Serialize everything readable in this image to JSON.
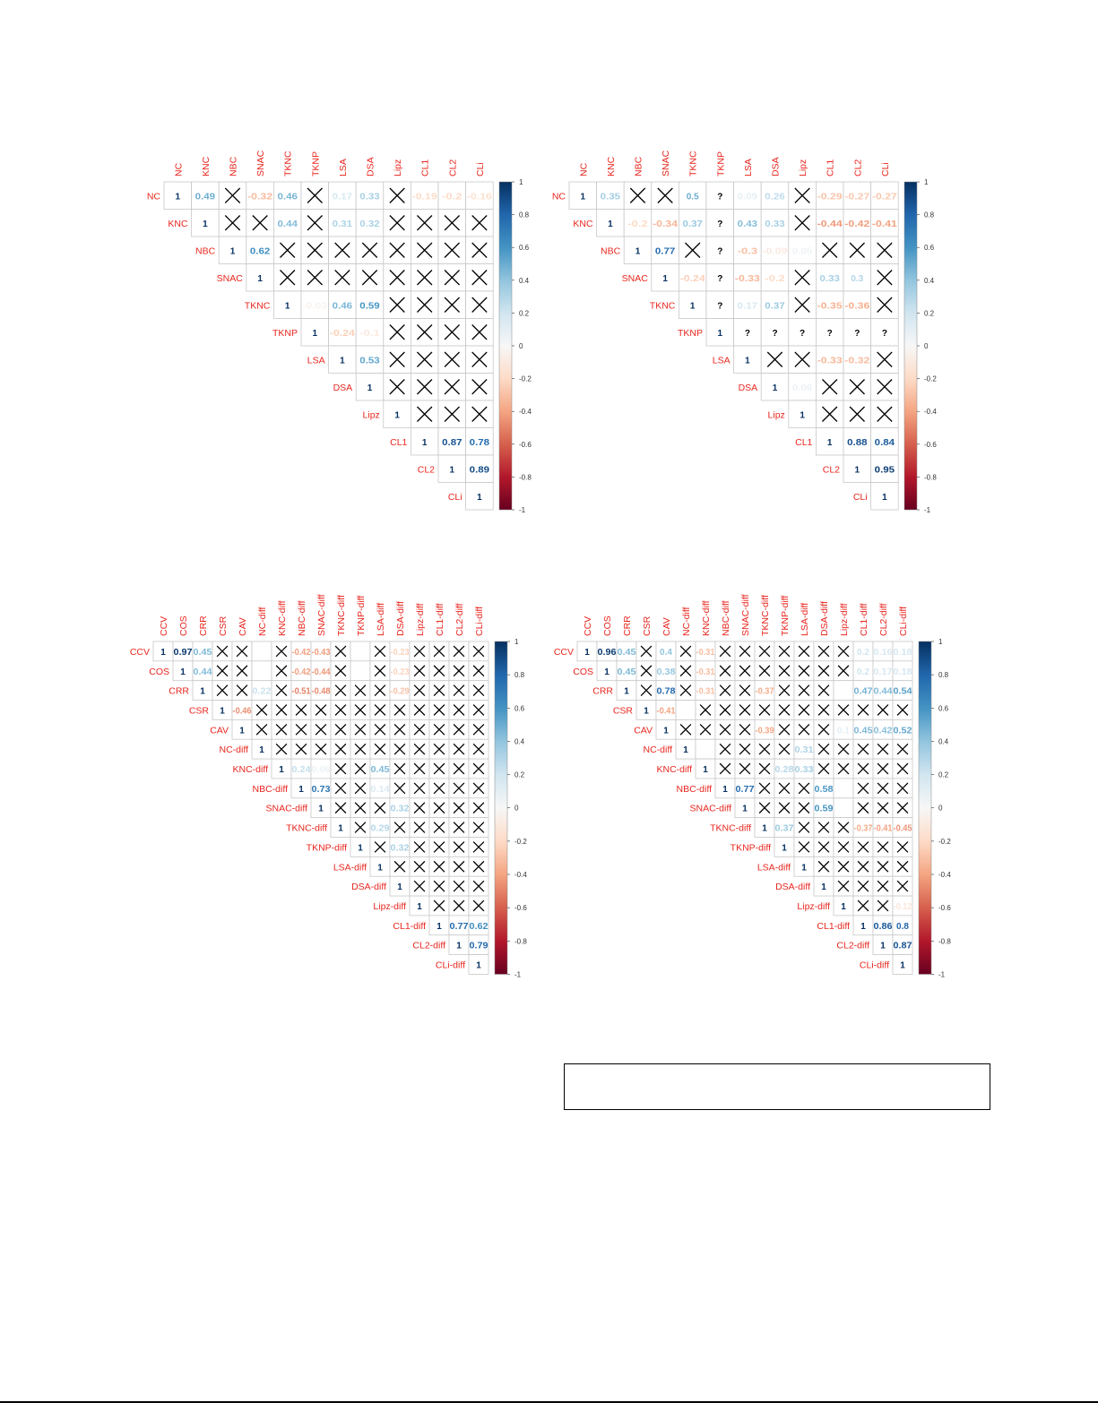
{
  "colors": {
    "label": "#E8261E",
    "grid": "#C8C8C8",
    "cross": "#000000",
    "colormap": [
      "#67001F",
      "#B2182B",
      "#D6604D",
      "#F4A582",
      "#FDDBC7",
      "#F7F7F7",
      "#D1E5F0",
      "#92C5DE",
      "#4393C3",
      "#2166AC",
      "#053061"
    ]
  },
  "chart_data": [
    {
      "type": "heatmap",
      "subtype": "upper-triangle correlation matrix",
      "colorbar_ticks": [
        "1",
        "0.8",
        "0.6",
        "0.4",
        "0.2",
        "0",
        "-0.2",
        "-0.4",
        "-0.6",
        "-0.8",
        "-1"
      ],
      "range": [
        -1,
        1
      ],
      "variables": [
        "NC",
        "KNC",
        "NBC",
        "SNAC",
        "TKNC",
        "TKNP",
        "LSA",
        "DSA",
        "Lipz",
        "CL1",
        "CL2",
        "CLi"
      ],
      "rows": [
        [
          "1",
          "0.49",
          "X",
          "-0.32",
          "0.46",
          "X",
          "0.17",
          "0.33",
          "X",
          "-0.19",
          "-0.2",
          "-0.16"
        ],
        [
          "1",
          "X",
          "X",
          "0.44",
          "X",
          "0.31",
          "0.32",
          "X",
          "X",
          "X",
          "X"
        ],
        [
          "1",
          "0.62",
          "X",
          "X",
          "X",
          "X",
          "X",
          "X",
          "X",
          "X"
        ],
        [
          "1",
          "X",
          "X",
          "X",
          "X",
          "X",
          "X",
          "X",
          "X"
        ],
        [
          "1",
          "-0.03",
          "0.46",
          "0.59",
          "X",
          "X",
          "X",
          "X"
        ],
        [
          "1",
          "-0.24",
          "-0.1",
          "X",
          "X",
          "X",
          "X"
        ],
        [
          "1",
          "0.53",
          "X",
          "X",
          "X",
          "X"
        ],
        [
          "1",
          "X",
          "X",
          "X",
          "X"
        ],
        [
          "1",
          "X",
          "X",
          "X"
        ],
        [
          "1",
          "0.87",
          "0.78"
        ],
        [
          "1",
          "0.89"
        ],
        [
          "1"
        ]
      ]
    },
    {
      "type": "heatmap",
      "subtype": "upper-triangle correlation matrix",
      "colorbar_ticks": [
        "1",
        "0.8",
        "0.6",
        "0.4",
        "0.2",
        "0",
        "-0.2",
        "-0.4",
        "-0.6",
        "-0.8",
        "-1"
      ],
      "range": [
        -1,
        1
      ],
      "variables": [
        "NC",
        "KNC",
        "NBC",
        "SNAC",
        "TKNC",
        "TKNP",
        "LSA",
        "DSA",
        "Lipz",
        "CL1",
        "CL2",
        "CLi"
      ],
      "rows": [
        [
          "1",
          "0.35",
          "X",
          "X",
          "0.5",
          "?",
          "0.09",
          "0.26",
          "X",
          "-0.29",
          "-0.27",
          "-0.27"
        ],
        [
          "1",
          "-0.2",
          "-0.34",
          "0.37",
          "?",
          "0.43",
          "0.33",
          "X",
          "-0.44",
          "-0.42",
          "-0.41"
        ],
        [
          "1",
          "0.77",
          "X",
          "?",
          "-0.3",
          "-0.09",
          "0.05",
          "X",
          "X",
          "X"
        ],
        [
          "1",
          "-0.24",
          "?",
          "-0.33",
          "-0.2",
          "X",
          "0.33",
          "0.3",
          "X"
        ],
        [
          "1",
          "?",
          "0.17",
          "0.37",
          "X",
          "-0.35",
          "-0.36",
          "X"
        ],
        [
          "1",
          "?",
          "?",
          "?",
          "?",
          "?",
          "?"
        ],
        [
          "1",
          "X",
          "X",
          "-0.33",
          "-0.32",
          "X"
        ],
        [
          "1",
          "0.06",
          "X",
          "X",
          "X"
        ],
        [
          "1",
          "X",
          "X",
          "X"
        ],
        [
          "1",
          "0.88",
          "0.84"
        ],
        [
          "1",
          "0.95"
        ],
        [
          "1"
        ]
      ]
    },
    {
      "type": "heatmap",
      "subtype": "upper-triangle correlation matrix",
      "colorbar_ticks": [
        "1",
        "0.8",
        "0.6",
        "0.4",
        "0.2",
        "0",
        "-0.2",
        "-0.4",
        "-0.6",
        "-0.8",
        "-1"
      ],
      "range": [
        -1,
        1
      ],
      "variables": [
        "CCV",
        "COS",
        "CRR",
        "CSR",
        "CAV",
        "NC-diff",
        "KNC-diff",
        "NBC-diff",
        "SNAC-diff",
        "TKNC-diff",
        "TKNP-diff",
        "LSA-diff",
        "DSA-diff",
        "Lipz-diff",
        "CL1-diff",
        "CL2-diff",
        "CLi-diff"
      ],
      "rows": [
        [
          "1",
          "0.97",
          "0.45",
          "X",
          "X",
          "",
          "X",
          "-0.42",
          "-0.43",
          "X",
          "",
          "X",
          "-0.23",
          "X",
          "X",
          "X",
          "X"
        ],
        [
          "1",
          "0.44",
          "X",
          "X",
          "",
          "X",
          "-0.42",
          "-0.44",
          "X",
          "",
          "X",
          "-0.23",
          "X",
          "X",
          "X",
          "X"
        ],
        [
          "1",
          "X",
          "X",
          "0.22",
          "X",
          "-0.51",
          "-0.48",
          "X",
          "X",
          "X",
          "-0.29",
          "X",
          "X",
          "X",
          "X"
        ],
        [
          "1",
          "-0.46",
          "X",
          "X",
          "X",
          "X",
          "X",
          "X",
          "X",
          "X",
          "X",
          "X",
          "X",
          "X"
        ],
        [
          "1",
          "X",
          "X",
          "X",
          "X",
          "X",
          "X",
          "X",
          "X",
          "X",
          "X",
          "X",
          "X"
        ],
        [
          "1",
          "X",
          "X",
          "X",
          "X",
          "X",
          "X",
          "X",
          "X",
          "X",
          "X",
          "X"
        ],
        [
          "1",
          "0.24",
          "0.06",
          "X",
          "X",
          "0.45",
          "X",
          "X",
          "X",
          "X",
          "X"
        ],
        [
          "1",
          "0.73",
          "X",
          "X",
          "0.14",
          "X",
          "X",
          "X",
          "X",
          "X"
        ],
        [
          "1",
          "X",
          "X",
          "X",
          "0.32",
          "X",
          "X",
          "X",
          "X"
        ],
        [
          "1",
          "X",
          "0.29",
          "X",
          "X",
          "X",
          "X",
          "X"
        ],
        [
          "1",
          "X",
          "0.32",
          "X",
          "X",
          "X",
          "X"
        ],
        [
          "1",
          "X",
          "X",
          "X",
          "X",
          "X"
        ],
        [
          "1",
          "X",
          "X",
          "X",
          "X"
        ],
        [
          "1",
          "X",
          "X",
          "X"
        ],
        [
          "1",
          "0.77",
          "0.62"
        ],
        [
          "1",
          "0.79"
        ],
        [
          "1"
        ]
      ]
    },
    {
      "type": "heatmap",
      "subtype": "upper-triangle correlation matrix",
      "colorbar_ticks": [
        "1",
        "0.8",
        "0.6",
        "0.4",
        "0.2",
        "0",
        "-0.2",
        "-0.4",
        "-0.6",
        "-0.8",
        "-1"
      ],
      "range": [
        -1,
        1
      ],
      "variables": [
        "CCV",
        "COS",
        "CRR",
        "CSR",
        "CAV",
        "NC-diff",
        "KNC-diff",
        "NBC-diff",
        "SNAC-diff",
        "TKNC-diff",
        "TKNP-diff",
        "LSA-diff",
        "DSA-diff",
        "Lipz-diff",
        "CL1-diff",
        "CL2-diff",
        "CLi-diff"
      ],
      "rows": [
        [
          "1",
          "0.96",
          "0.45",
          "X",
          "0.4",
          "X",
          "-0.31",
          "X",
          "X",
          "X",
          "X",
          "X",
          "X",
          "X",
          "0.2",
          "0.16",
          "0.18"
        ],
        [
          "1",
          "0.45",
          "X",
          "0.38",
          "X",
          "-0.31",
          "X",
          "X",
          "X",
          "X",
          "X",
          "X",
          "X",
          "0.2",
          "0.17",
          "0.18"
        ],
        [
          "1",
          "X",
          "0.78",
          "X",
          "-0.31",
          "X",
          "X",
          "-0.37",
          "X",
          "X",
          "X",
          "",
          "0.47",
          "0.44",
          "0.54"
        ],
        [
          "1",
          "-0.41",
          "",
          "X",
          "X",
          "X",
          "X",
          "X",
          "X",
          "X",
          "X",
          "X",
          "X",
          "X"
        ],
        [
          "1",
          "X",
          "X",
          "X",
          "X",
          "-0.39",
          "X",
          "X",
          "X",
          "0.1",
          "0.45",
          "0.42",
          "0.52"
        ],
        [
          "1",
          "",
          "X",
          "X",
          "X",
          "X",
          "0.31",
          "X",
          "X",
          "X",
          "X",
          "X"
        ],
        [
          "1",
          "X",
          "X",
          "X",
          "0.28",
          "0.33",
          "X",
          "X",
          "X",
          "X",
          "X"
        ],
        [
          "1",
          "0.77",
          "X",
          "X",
          "X",
          "0.58",
          "",
          "X",
          "X",
          "X"
        ],
        [
          "1",
          "X",
          "X",
          "X",
          "0.59",
          "",
          "X",
          "X",
          "X"
        ],
        [
          "1",
          "0.37",
          "X",
          "X",
          "X",
          "-0.37",
          "-0.41",
          "-0.45"
        ],
        [
          "1",
          "X",
          "X",
          "X",
          "X",
          "X",
          "X"
        ],
        [
          "1",
          "X",
          "X",
          "X",
          "X",
          "X"
        ],
        [
          "1",
          "X",
          "X",
          "X",
          "X"
        ],
        [
          "1",
          "X",
          "X",
          "-0.12"
        ],
        [
          "1",
          "0.86",
          "0.8"
        ],
        [
          "1",
          "0.87"
        ],
        [
          "1"
        ]
      ]
    }
  ]
}
